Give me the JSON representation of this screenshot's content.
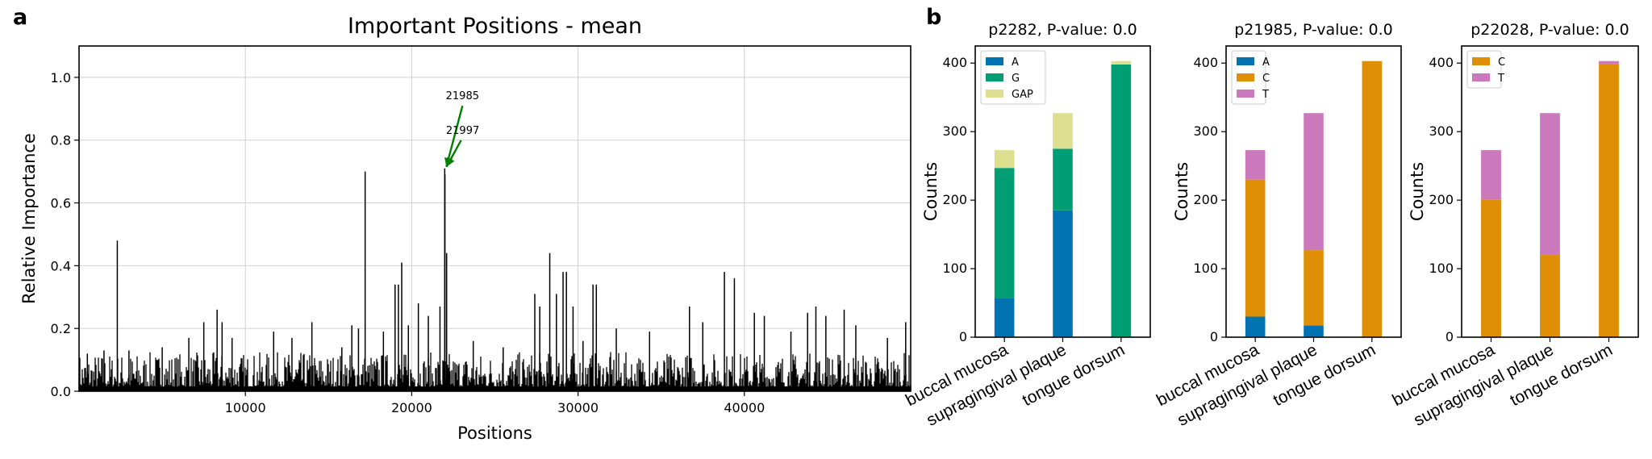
{
  "colors": {
    "A": "#0173b2",
    "G": "#029e73",
    "GAP": "#dede8f",
    "C": "#de8f05",
    "T": "#cc78bc",
    "arrow": "#008000",
    "line": "#000000",
    "grid": "#d0d0d0"
  },
  "panels": {
    "a": "a",
    "b": "b"
  },
  "chart_data": [
    {
      "type": "line",
      "title": "Important Positions - mean",
      "xlabel": "Positions",
      "ylabel": "Relative Importance",
      "xlim": [
        0,
        50000
      ],
      "ylim": [
        0,
        1.1
      ],
      "xticks": [
        10000,
        20000,
        30000,
        40000
      ],
      "xtick_labels": [
        "10000",
        "20000",
        "30000",
        "40000"
      ],
      "yticks": [
        0.0,
        0.2,
        0.4,
        0.6,
        0.8,
        1.0
      ],
      "ytick_labels": [
        "0.0",
        "0.2",
        "0.4",
        "0.6",
        "0.8",
        "1.0"
      ],
      "grid": true,
      "baseline_max": 0.11,
      "peaks": [
        {
          "x": 500,
          "y": 0.12
        },
        {
          "x": 1500,
          "y": 0.13
        },
        {
          "x": 2300,
          "y": 0.48
        },
        {
          "x": 3000,
          "y": 0.13
        },
        {
          "x": 5000,
          "y": 0.14
        },
        {
          "x": 6600,
          "y": 0.17
        },
        {
          "x": 7500,
          "y": 0.22
        },
        {
          "x": 8300,
          "y": 0.26
        },
        {
          "x": 8600,
          "y": 0.22
        },
        {
          "x": 9200,
          "y": 0.17
        },
        {
          "x": 11700,
          "y": 0.19
        },
        {
          "x": 12800,
          "y": 0.17
        },
        {
          "x": 14000,
          "y": 0.22
        },
        {
          "x": 15800,
          "y": 0.14
        },
        {
          "x": 16400,
          "y": 0.21
        },
        {
          "x": 16800,
          "y": 0.2
        },
        {
          "x": 17200,
          "y": 0.7
        },
        {
          "x": 18300,
          "y": 0.19
        },
        {
          "x": 19000,
          "y": 0.34
        },
        {
          "x": 19200,
          "y": 0.34
        },
        {
          "x": 19400,
          "y": 0.41
        },
        {
          "x": 19800,
          "y": 0.21
        },
        {
          "x": 20400,
          "y": 0.28
        },
        {
          "x": 21000,
          "y": 0.24
        },
        {
          "x": 21700,
          "y": 0.27
        },
        {
          "x": 21985,
          "y": 0.71
        },
        {
          "x": 21997,
          "y": 0.69
        },
        {
          "x": 22100,
          "y": 0.44
        },
        {
          "x": 23700,
          "y": 0.16
        },
        {
          "x": 25500,
          "y": 0.14
        },
        {
          "x": 27400,
          "y": 0.31
        },
        {
          "x": 27700,
          "y": 0.27
        },
        {
          "x": 28300,
          "y": 0.44
        },
        {
          "x": 28700,
          "y": 0.31
        },
        {
          "x": 29100,
          "y": 0.38
        },
        {
          "x": 29300,
          "y": 0.38
        },
        {
          "x": 29700,
          "y": 0.27
        },
        {
          "x": 30300,
          "y": 0.16
        },
        {
          "x": 30900,
          "y": 0.34
        },
        {
          "x": 31100,
          "y": 0.34
        },
        {
          "x": 32300,
          "y": 0.2
        },
        {
          "x": 34300,
          "y": 0.19
        },
        {
          "x": 36700,
          "y": 0.27
        },
        {
          "x": 37500,
          "y": 0.22
        },
        {
          "x": 38800,
          "y": 0.38
        },
        {
          "x": 39400,
          "y": 0.36
        },
        {
          "x": 40600,
          "y": 0.25
        },
        {
          "x": 41200,
          "y": 0.24
        },
        {
          "x": 42800,
          "y": 0.19
        },
        {
          "x": 43800,
          "y": 0.25
        },
        {
          "x": 44300,
          "y": 0.27
        },
        {
          "x": 44900,
          "y": 0.24
        },
        {
          "x": 46000,
          "y": 0.26
        },
        {
          "x": 46700,
          "y": 0.21
        },
        {
          "x": 48600,
          "y": 0.17
        },
        {
          "x": 49700,
          "y": 0.22
        }
      ],
      "annotations": [
        {
          "text": "21985",
          "x": 21985,
          "y": 0.71,
          "text_y": 0.93
        },
        {
          "text": "21997",
          "x": 21997,
          "y": 0.71,
          "text_y": 0.82
        }
      ]
    },
    {
      "type": "bar",
      "title": "p2282, P-value: 0.0",
      "ylabel": "Counts",
      "categories": [
        "buccal mucosa",
        "supragingival plaque",
        "tongue dorsum"
      ],
      "ylim": [
        0,
        425
      ],
      "yticks": [
        0,
        100,
        200,
        300,
        400
      ],
      "ytick_labels": [
        "0",
        "100",
        "200",
        "300",
        "400"
      ],
      "series": [
        {
          "name": "A",
          "values": [
            57,
            185,
            0
          ]
        },
        {
          "name": "G",
          "values": [
            190,
            90,
            398
          ]
        },
        {
          "name": "GAP",
          "values": [
            26,
            52,
            5
          ]
        }
      ],
      "legend": "top-left"
    },
    {
      "type": "bar",
      "title": "p21985, P-value: 0.0",
      "ylabel": "Counts",
      "categories": [
        "buccal mucosa",
        "supragingival plaque",
        "tongue dorsum"
      ],
      "ylim": [
        0,
        425
      ],
      "yticks": [
        0,
        100,
        200,
        300,
        400
      ],
      "ytick_labels": [
        "0",
        "100",
        "200",
        "300",
        "400"
      ],
      "series": [
        {
          "name": "A",
          "values": [
            30,
            17,
            0
          ]
        },
        {
          "name": "C",
          "values": [
            200,
            110,
            403
          ]
        },
        {
          "name": "T",
          "values": [
            43,
            200,
            0
          ]
        }
      ],
      "legend": "top-left"
    },
    {
      "type": "bar",
      "title": "p22028, P-value: 0.0",
      "ylabel": "Counts",
      "categories": [
        "buccal mucosa",
        "supragingival plaque",
        "tongue dorsum"
      ],
      "ylim": [
        0,
        425
      ],
      "yticks": [
        0,
        100,
        200,
        300,
        400
      ],
      "ytick_labels": [
        "0",
        "100",
        "200",
        "300",
        "400"
      ],
      "series": [
        {
          "name": "C",
          "values": [
            201,
            120,
            399
          ]
        },
        {
          "name": "T",
          "values": [
            72,
            207,
            4
          ]
        }
      ],
      "legend": "top-left"
    }
  ]
}
